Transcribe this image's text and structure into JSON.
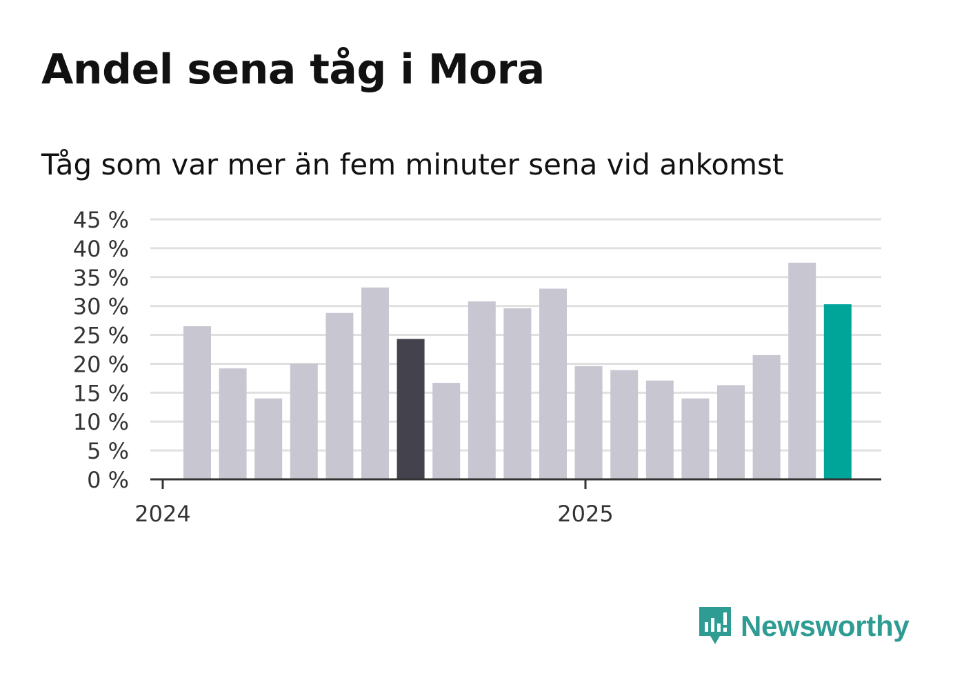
{
  "title": "Andel sena tåg i Mora",
  "subtitle": "Tåg som var mer än fem minuter sena vid ankomst",
  "brand": {
    "name": "Newsworthy",
    "color": "#2e9c93",
    "icon": "newsworthy-logo-icon"
  },
  "colors": {
    "bar_default": "#c8c7d1",
    "bar_highlight_dark": "#43424d",
    "bar_latest": "#00a59a",
    "grid": "#e0e0e0",
    "axis": "#333333"
  },
  "chart_data": {
    "type": "bar",
    "ylim": [
      0,
      45
    ],
    "y_ticks": [
      0,
      5,
      10,
      15,
      20,
      25,
      30,
      35,
      40,
      45
    ],
    "y_tick_labels": [
      "0 %",
      "5 %",
      "10 %",
      "15 %",
      "20 %",
      "25 %",
      "30 %",
      "35 %",
      "40 %",
      "45 %"
    ],
    "x_tick_labels": [
      {
        "label": "2024",
        "index": 0
      },
      {
        "label": "2025",
        "index": 12
      }
    ],
    "values": [
      26.5,
      19.2,
      14.0,
      20.0,
      28.8,
      33.2,
      24.3,
      16.7,
      30.8,
      29.6,
      33.0,
      19.6,
      18.9,
      17.1,
      14.0,
      16.3,
      21.5,
      37.5,
      30.3
    ],
    "highlight": {
      "dark": [
        6
      ],
      "latest": [
        18
      ]
    },
    "grid": true
  }
}
